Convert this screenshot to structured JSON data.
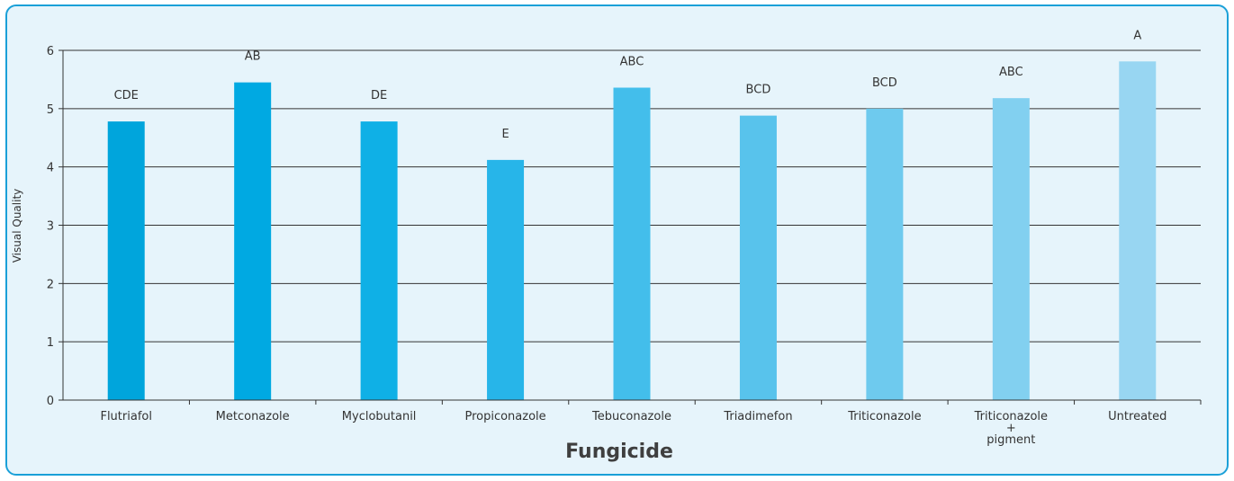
{
  "chart_data": {
    "type": "bar",
    "categories": [
      "Flutriafol",
      "Metconazole",
      "Myclobutanil",
      "Propiconazole",
      "Tebuconazole",
      "Triadimefon",
      "Triticonazole",
      "Triticonazole\n+\npigment",
      "Untreated"
    ],
    "values": [
      4.78,
      5.45,
      4.78,
      4.12,
      5.36,
      4.88,
      5.0,
      5.18,
      5.81
    ],
    "data_labels": [
      "CDE",
      "AB",
      "DE",
      "E",
      "ABC",
      "BCD",
      "BCD",
      "ABC",
      "A"
    ],
    "bar_colors": [
      "#00a5dc",
      "#00a9e2",
      "#0fb0e6",
      "#27b5e9",
      "#43beeb",
      "#58c3ec",
      "#6ecaee",
      "#82d0f0",
      "#98d6f2"
    ],
    "xlabel": "Fungicide",
    "ylabel": "Visual Quality",
    "ylim": [
      0,
      6
    ],
    "yticks": [
      0,
      1,
      2,
      3,
      4,
      5,
      6
    ],
    "grid": true
  }
}
